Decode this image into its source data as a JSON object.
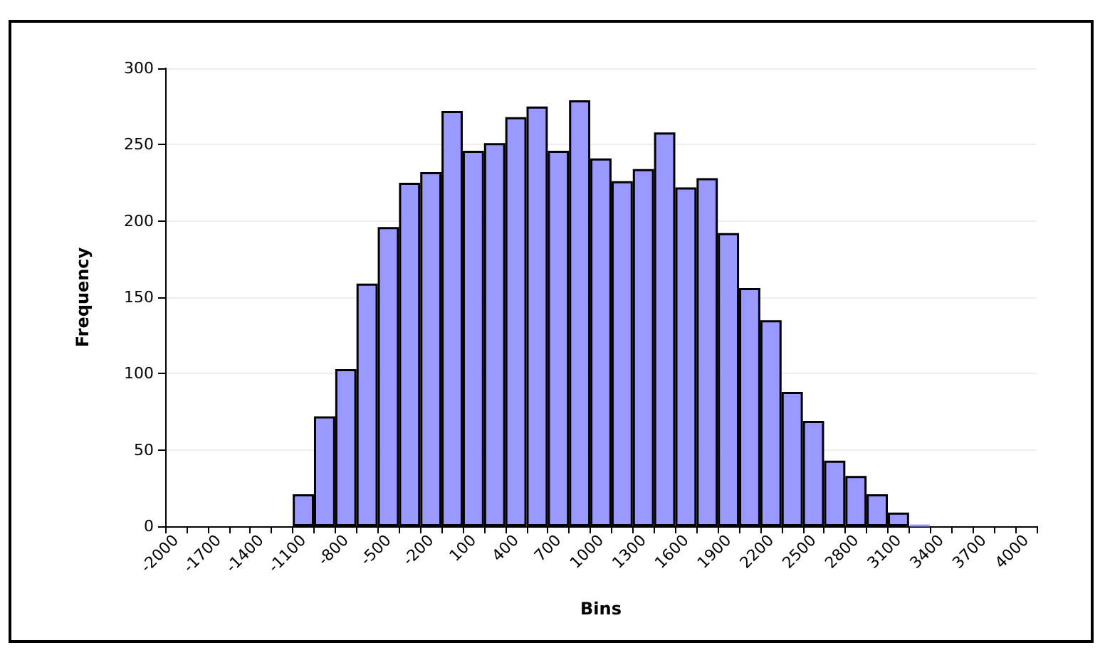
{
  "chart_data": {
    "type": "bar",
    "xlabel": "Bins",
    "ylabel": "Frequency",
    "categories": [
      "-2000",
      null,
      "-1700",
      null,
      "-1400",
      null,
      "-1100",
      null,
      "-800",
      null,
      "-500",
      null,
      "-200",
      null,
      "100",
      null,
      "400",
      null,
      "700",
      null,
      "1000",
      null,
      "1300",
      null,
      "1600",
      null,
      "1900",
      null,
      "2200",
      null,
      "2500",
      null,
      "2800",
      null,
      "3100",
      null,
      "3400",
      null,
      "3700",
      null,
      "4000"
    ],
    "series": [
      {
        "color": "#9999ff",
        "values": [
          0,
          0,
          0,
          0,
          0,
          0,
          21,
          72,
          103,
          159,
          196,
          225,
          232,
          272,
          246,
          251,
          268,
          275,
          246,
          279,
          241,
          226,
          234,
          258,
          222,
          228,
          192,
          156,
          135,
          88,
          69,
          43,
          33,
          21,
          9,
          1,
          0,
          0,
          0,
          0,
          0
        ]
      }
    ],
    "ylim": [
      0,
      300
    ],
    "yticks": [
      0,
      50,
      100,
      150,
      200,
      250,
      300
    ],
    "grid": "y"
  }
}
